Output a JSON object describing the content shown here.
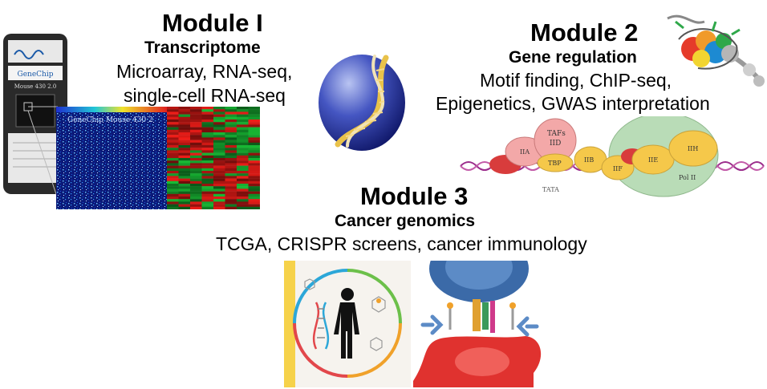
{
  "modules": [
    {
      "title": "Module I",
      "subtitle": "Transcriptome",
      "line1": "Microarray, RNA-seq,",
      "line2": "single-cell RNA-seq"
    },
    {
      "title": "Module 2",
      "subtitle": "Gene regulation",
      "line1": "Motif finding, ChIP-seq,",
      "line2": "Epigenetics, GWAS interpretation"
    },
    {
      "title": "Module 3",
      "subtitle": "Cancer genomics",
      "line1": "TCGA, CRISPR screens, cancer immunology"
    }
  ],
  "genechip": {
    "brand": "GeneChip",
    "model": "Mouse 430 2.0",
    "scan_label": "GeneChip Mouse 430 2"
  },
  "transcription_complex": {
    "labels": [
      "TAFs",
      "IID",
      "IIA",
      "TBP",
      "IIB",
      "IIF",
      "IIE",
      "IIH",
      "Pol II",
      "TATA"
    ]
  },
  "colors": {
    "dna_helix": "#9b2d8c",
    "heatmap_red": "#e0201a",
    "heatmap_green": "#22a53a",
    "pol2_green": "#b9dcb7",
    "tf_yellow": "#f5c84a",
    "tf_pink": "#f3a8a8",
    "tf_red": "#d83c3c"
  }
}
